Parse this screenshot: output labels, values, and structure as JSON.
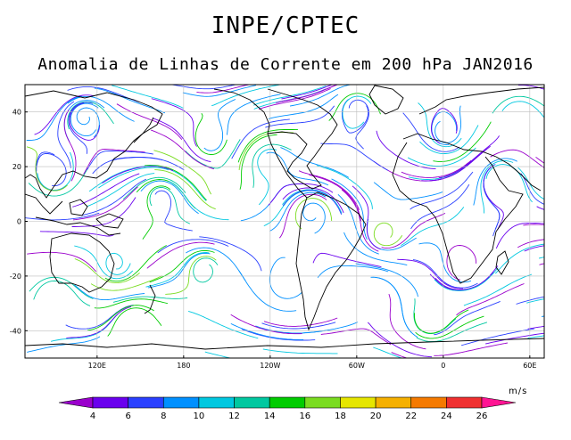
{
  "header": {
    "title": "INPE/CPTEC",
    "subtitle": "Anomalia de Linhas de Corrente em 200 hPa JAN2016"
  },
  "map": {
    "lat_range": [
      -50,
      50
    ],
    "lon_range": [
      70,
      430
    ],
    "lat_ticks": [
      {
        "value": 40,
        "label": "40"
      },
      {
        "value": 20,
        "label": "20"
      },
      {
        "value": 0,
        "label": "0"
      },
      {
        "value": -20,
        "label": "-20"
      },
      {
        "value": -40,
        "label": "-40"
      }
    ],
    "lon_ticks": [
      {
        "value": 120,
        "label": "120E"
      },
      {
        "value": 180,
        "label": "180"
      },
      {
        "value": 240,
        "label": "120W"
      },
      {
        "value": 300,
        "label": "60W"
      },
      {
        "value": 360,
        "label": "0"
      },
      {
        "value": 420,
        "label": "60E"
      }
    ],
    "grid": true,
    "land_color": "#ffffff",
    "coast_color": "#000000"
  },
  "colorbar": {
    "unit": "m/s",
    "labels": [
      "4",
      "6",
      "8",
      "10",
      "12",
      "14",
      "16",
      "18",
      "20",
      "22",
      "24",
      "26"
    ],
    "colors": [
      "#9a00cc",
      "#6a00ee",
      "#2a40ff",
      "#0090ff",
      "#00c8e0",
      "#00c8a0",
      "#00cc00",
      "#7adc20",
      "#e6e600",
      "#f5b000",
      "#f57a00",
      "#f03030",
      "#ff1493"
    ]
  }
}
